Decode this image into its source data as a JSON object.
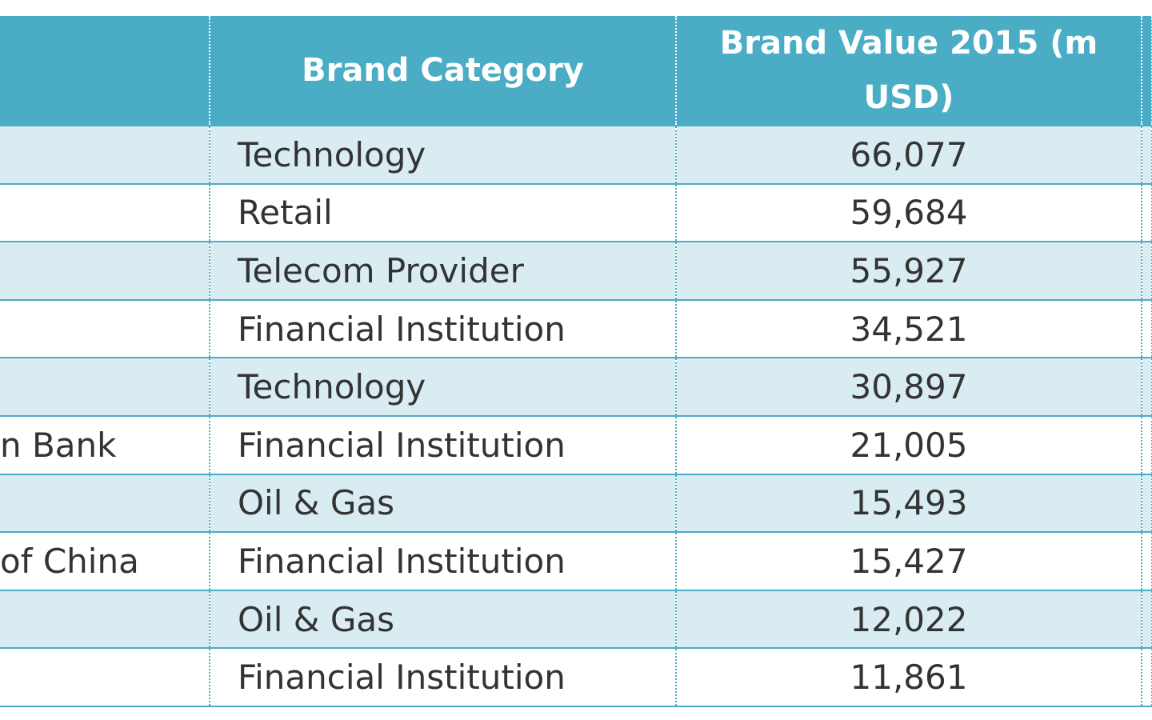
{
  "table": {
    "headers": {
      "name": "",
      "category": "Brand Category",
      "value": "Brand Value 2015 (m USD)",
      "extra": ""
    },
    "rows": [
      {
        "name": "",
        "category": "Technology",
        "value": "66,077"
      },
      {
        "name": "",
        "category": "Retail",
        "value": "59,684"
      },
      {
        "name": "",
        "category": "Telecom Provider",
        "value": "55,927"
      },
      {
        "name": "",
        "category": "Financial Institution",
        "value": "34,521"
      },
      {
        "name": "",
        "category": "Technology",
        "value": "30,897"
      },
      {
        "name": "n Bank",
        "category": "Financial Institution",
        "value": "21,005"
      },
      {
        "name": "",
        "category": "Oil & Gas",
        "value": "15,493"
      },
      {
        "name": "of China",
        "category": "Financial Institution",
        "value": "15,427"
      },
      {
        "name": "",
        "category": "Oil & Gas",
        "value": "12,022"
      },
      {
        "name": "",
        "category": "Financial Institution",
        "value": "11,861"
      }
    ]
  },
  "colors": {
    "header_bg": "#4bacc6",
    "band_bg": "#d9ecf2",
    "text": "#333333",
    "header_text": "#ffffff"
  }
}
